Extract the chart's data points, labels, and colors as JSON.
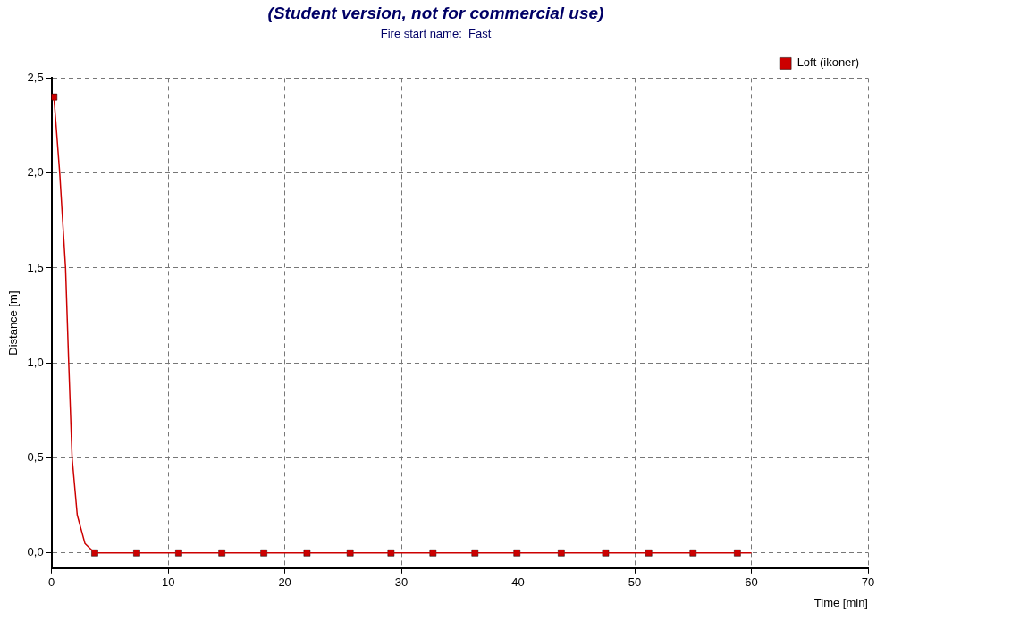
{
  "chart_data": {
    "type": "line",
    "title": "(Student version, not for commercial use)",
    "subtitle": "Fire start name:  Fast",
    "xlabel": "Time [min]",
    "ylabel": "Distance [m]",
    "series": [
      {
        "type": "line",
        "color": "#cc0000",
        "marker": "none",
        "x": [
          0.2,
          0.7,
          1.2,
          1.47,
          1.76,
          2.2,
          2.86,
          3.7,
          60
        ],
        "values": [
          2.4,
          2.0,
          1.5,
          1.0,
          0.5,
          0.2,
          0.05,
          0,
          0
        ]
      },
      {
        "type": "scatter",
        "name": "Loft (ikoner)",
        "color": "#cc0000",
        "marker": "square",
        "x": [
          0.2,
          3.7,
          7.3,
          10.9,
          14.6,
          18.2,
          21.9,
          25.6,
          29.1,
          32.7,
          36.3,
          39.9,
          43.7,
          47.5,
          51.2,
          55.0,
          58.8
        ],
        "values": [
          2.4,
          0,
          0,
          0,
          0,
          0,
          0,
          0,
          0,
          0,
          0,
          0,
          0,
          0,
          0,
          0,
          0
        ]
      }
    ],
    "xlim": [
      0,
      70
    ],
    "xticks": [
      0,
      10,
      20,
      30,
      40,
      50,
      60,
      70
    ],
    "ylim": [
      -0.08,
      2.5
    ],
    "yticks": [
      {
        "value": 0,
        "label": "0,0"
      },
      {
        "value": 0.5,
        "label": "0,5"
      },
      {
        "value": 1,
        "label": "1,0"
      },
      {
        "value": 1.5,
        "label": "1,5"
      },
      {
        "value": 2,
        "label": "2,0"
      },
      {
        "value": 2.5,
        "label": "2,5"
      }
    ],
    "grid": true,
    "legend": "top right"
  }
}
